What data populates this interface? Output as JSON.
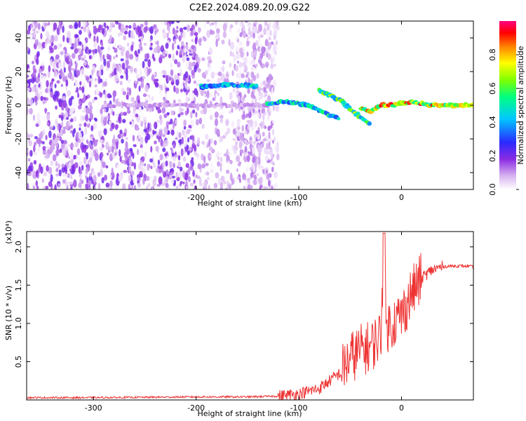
{
  "title": "C2E2.2024.089.20.09.G22",
  "chart_data": [
    {
      "type": "heatmap",
      "xlabel": "Height of straight line (km)",
      "ylabel": "Frequency (Hz)",
      "xlim": [
        -365,
        70
      ],
      "ylim": [
        -50,
        50
      ],
      "xticks": [
        -300,
        -200,
        -100,
        0
      ],
      "yticks": [
        -40,
        -20,
        0,
        20,
        40
      ],
      "colorbar": {
        "label": "Normalized spectral amplitude",
        "range": [
          0.0,
          1.0
        ],
        "ticks": [
          0.0,
          0.2,
          0.4,
          0.6,
          0.8
        ]
      },
      "tracks": [
        {
          "x": [
            -290,
            -270,
            -250,
            -230,
            -210,
            -200
          ],
          "y": [
            0,
            0,
            0,
            0,
            0,
            0
          ],
          "amplitude": 0.1
        },
        {
          "x": [
            -195,
            -185,
            -175,
            -165,
            -150,
            -140
          ],
          "y": [
            11,
            11,
            12,
            12,
            12,
            11
          ],
          "amplitude": 0.45
        },
        {
          "x": [
            -195,
            -180,
            -160,
            -140,
            -130
          ],
          "y": [
            0,
            0,
            0,
            0,
            0
          ],
          "amplitude": 0.1
        },
        {
          "x": [
            -130,
            -120,
            -110,
            -100,
            -90,
            -80,
            -70,
            -60
          ],
          "y": [
            1,
            2,
            2,
            1,
            0,
            -3,
            -6,
            -8
          ],
          "amplitude": 0.5
        },
        {
          "x": [
            -80,
            -70,
            -60,
            -50,
            -40,
            -30
          ],
          "y": [
            9,
            6,
            3,
            -2,
            -7,
            -12
          ],
          "amplitude": 0.6
        },
        {
          "x": [
            -40,
            -30,
            -20,
            -10,
            0,
            10,
            20,
            30,
            40,
            50,
            60,
            70
          ],
          "y": [
            -2,
            -4,
            0,
            0,
            1,
            2,
            1,
            0,
            0,
            0,
            0,
            0
          ],
          "amplitude": 0.8
        },
        {
          "x": [
            -345,
            -335,
            -325
          ],
          "y": [
            -30,
            -20,
            -12
          ],
          "amplitude": 0.1
        }
      ]
    },
    {
      "type": "line",
      "xlabel": "Height of straight line (km)",
      "ylabel": "SNR (10 * v/v)",
      "y_multiplier": "(x10⁴)",
      "xlim": [
        -365,
        70
      ],
      "ylim": [
        0,
        2.2
      ],
      "xticks": [
        -300,
        -200,
        -100,
        0
      ],
      "yticks": [
        0.5,
        1.0,
        1.5,
        2.0
      ],
      "ytick_labels": [
        "0.5",
        "1.0",
        "1.5",
        "2.0"
      ],
      "series": [
        {
          "color": "#ee3333",
          "x": [
            -365,
            -300,
            -200,
            -150,
            -120,
            -100,
            -80,
            -60,
            -50,
            -40,
            -30,
            -20,
            -17,
            -15,
            -10,
            0,
            10,
            20,
            30,
            40,
            50,
            60,
            70
          ],
          "y": [
            0.03,
            0.03,
            0.04,
            0.04,
            0.05,
            0.08,
            0.15,
            0.35,
            0.55,
            0.65,
            0.7,
            0.85,
            2.18,
            0.95,
            1.0,
            1.1,
            1.4,
            1.6,
            1.7,
            1.74,
            1.75,
            1.75,
            1.74
          ]
        }
      ]
    }
  ]
}
